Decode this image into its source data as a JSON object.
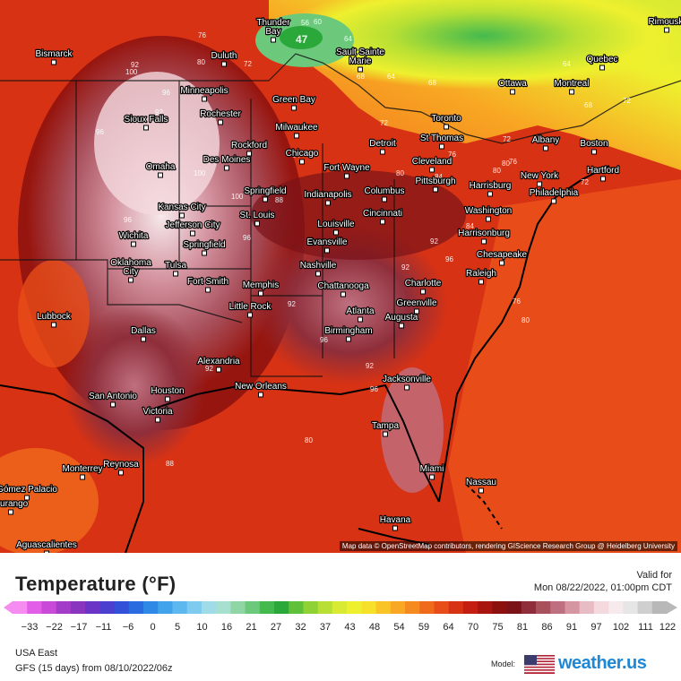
{
  "map": {
    "attribution": "Map data © OpenStreetMap contributors, rendering GIScience Research Group @ Heidelberg University",
    "cities": [
      {
        "name": "Thunder Bay",
        "lines": [
          "Thunder",
          "Bay"
        ]
      },
      {
        "name": "Rimouski"
      },
      {
        "name": "Bismarck"
      },
      {
        "name": "Duluth"
      },
      {
        "name": "Sault Sainte Marie",
        "lines": [
          "Sault Sainte",
          "Marie"
        ]
      },
      {
        "name": "Quebec"
      },
      {
        "name": "Ottawa"
      },
      {
        "name": "Montreal"
      },
      {
        "name": "Minneapolis"
      },
      {
        "name": "Green Bay"
      },
      {
        "name": "Rochester"
      },
      {
        "name": "Sioux Falls"
      },
      {
        "name": "Milwaukee"
      },
      {
        "name": "Toronto"
      },
      {
        "name": "Boston"
      },
      {
        "name": "Rockford"
      },
      {
        "name": "Detroit"
      },
      {
        "name": "St Thomas"
      },
      {
        "name": "Albany"
      },
      {
        "name": "Des Moines"
      },
      {
        "name": "Chicago"
      },
      {
        "name": "Omaha"
      },
      {
        "name": "Fort Wayne"
      },
      {
        "name": "Cleveland"
      },
      {
        "name": "New York"
      },
      {
        "name": "Hartford"
      },
      {
        "name": "Springfield"
      },
      {
        "name": "Indianapolis"
      },
      {
        "name": "Columbus"
      },
      {
        "name": "Pittsburgh"
      },
      {
        "name": "Harrisburg"
      },
      {
        "name": "Philadelphia"
      },
      {
        "name": "Kansas City"
      },
      {
        "name": "Jefferson City"
      },
      {
        "name": "St. Louis"
      },
      {
        "name": "Cincinnati"
      },
      {
        "name": "Washington"
      },
      {
        "name": "Louisville"
      },
      {
        "name": "Wichita"
      },
      {
        "name": "Evansville"
      },
      {
        "name": "Harrisonburg"
      },
      {
        "name": "Springfield"
      },
      {
        "name": "Chesapeake"
      },
      {
        "name": "Oklahoma City",
        "lines": [
          "Oklahoma",
          "City"
        ]
      },
      {
        "name": "Tulsa"
      },
      {
        "name": "Nashville"
      },
      {
        "name": "Raleigh"
      },
      {
        "name": "Fort Smith"
      },
      {
        "name": "Memphis"
      },
      {
        "name": "Chattanooga"
      },
      {
        "name": "Charlotte"
      },
      {
        "name": "Lubbock"
      },
      {
        "name": "Little Rock"
      },
      {
        "name": "Greenville"
      },
      {
        "name": "Atlanta"
      },
      {
        "name": "Augusta"
      },
      {
        "name": "Dallas"
      },
      {
        "name": "Birmingham"
      },
      {
        "name": "Alexandria"
      },
      {
        "name": "Jacksonville"
      },
      {
        "name": "San Antonio"
      },
      {
        "name": "Houston"
      },
      {
        "name": "New Orleans"
      },
      {
        "name": "Victoria"
      },
      {
        "name": "Tampa"
      },
      {
        "name": "Reynosa"
      },
      {
        "name": "Monterrey"
      },
      {
        "name": "Miami"
      },
      {
        "name": "Nassau"
      },
      {
        "name": "Gómez Palacio"
      },
      {
        "name": "Durango"
      },
      {
        "name": "Havana"
      },
      {
        "name": "Aguascalientes"
      }
    ],
    "contour_labels": [
      "47",
      "56",
      "60",
      "64",
      "76",
      "80",
      "72",
      "68",
      "64",
      "72",
      "100",
      "92",
      "96",
      "92",
      "68",
      "72",
      "64",
      "72",
      "68",
      "72",
      "80",
      "76",
      "96",
      "100",
      "96",
      "88",
      "84",
      "96",
      "92",
      "100",
      "96",
      "92",
      "80",
      "76",
      "80",
      "88",
      "92",
      "96",
      "96",
      "92",
      "92",
      "84",
      "80",
      "76",
      "80",
      "84"
    ]
  },
  "legend": {
    "title": "Temperature (°F)",
    "valid_label": "Valid for",
    "valid_time": "Mon 08/22/2022, 01:00pm CDT",
    "ticks": [
      "-33",
      "-22",
      "-17",
      "-11",
      "-6",
      "0",
      "5",
      "10",
      "16",
      "21",
      "27",
      "32",
      "37",
      "43",
      "48",
      "54",
      "59",
      "64",
      "70",
      "75",
      "81",
      "86",
      "91",
      "97",
      "102",
      "111",
      "122"
    ],
    "colors": [
      "#f78cf0",
      "#e35ee6",
      "#c84ad6",
      "#a33cc8",
      "#8a35c0",
      "#6c34c6",
      "#4b3fd0",
      "#3351d8",
      "#2b6be0",
      "#2e89e6",
      "#41a3ec",
      "#5db8f0",
      "#7fcbef",
      "#9fdce8",
      "#a8e0d0",
      "#8fd6a4",
      "#6cc97c",
      "#44ba4e",
      "#2aa83a",
      "#5fc03a",
      "#8fd235",
      "#b8e034",
      "#d8ea32",
      "#eef02e",
      "#f7e02a",
      "#f8c426",
      "#f8a823",
      "#f58a20",
      "#f06a1c",
      "#e84c18",
      "#d83214",
      "#c41e12",
      "#a81410",
      "#8c100e",
      "#7a1218",
      "#8f2e3a",
      "#a8505c",
      "#bf7080",
      "#d596a2",
      "#e8bcc4",
      "#f4dadf",
      "#f6eaec",
      "#e6e6e6",
      "#cfcfcf",
      "#b8b8b8"
    ],
    "region": "USA East",
    "run": "GFS (15 days) from 08/10/2022/06z",
    "model_label": "Model:",
    "brand": "weather.us"
  }
}
